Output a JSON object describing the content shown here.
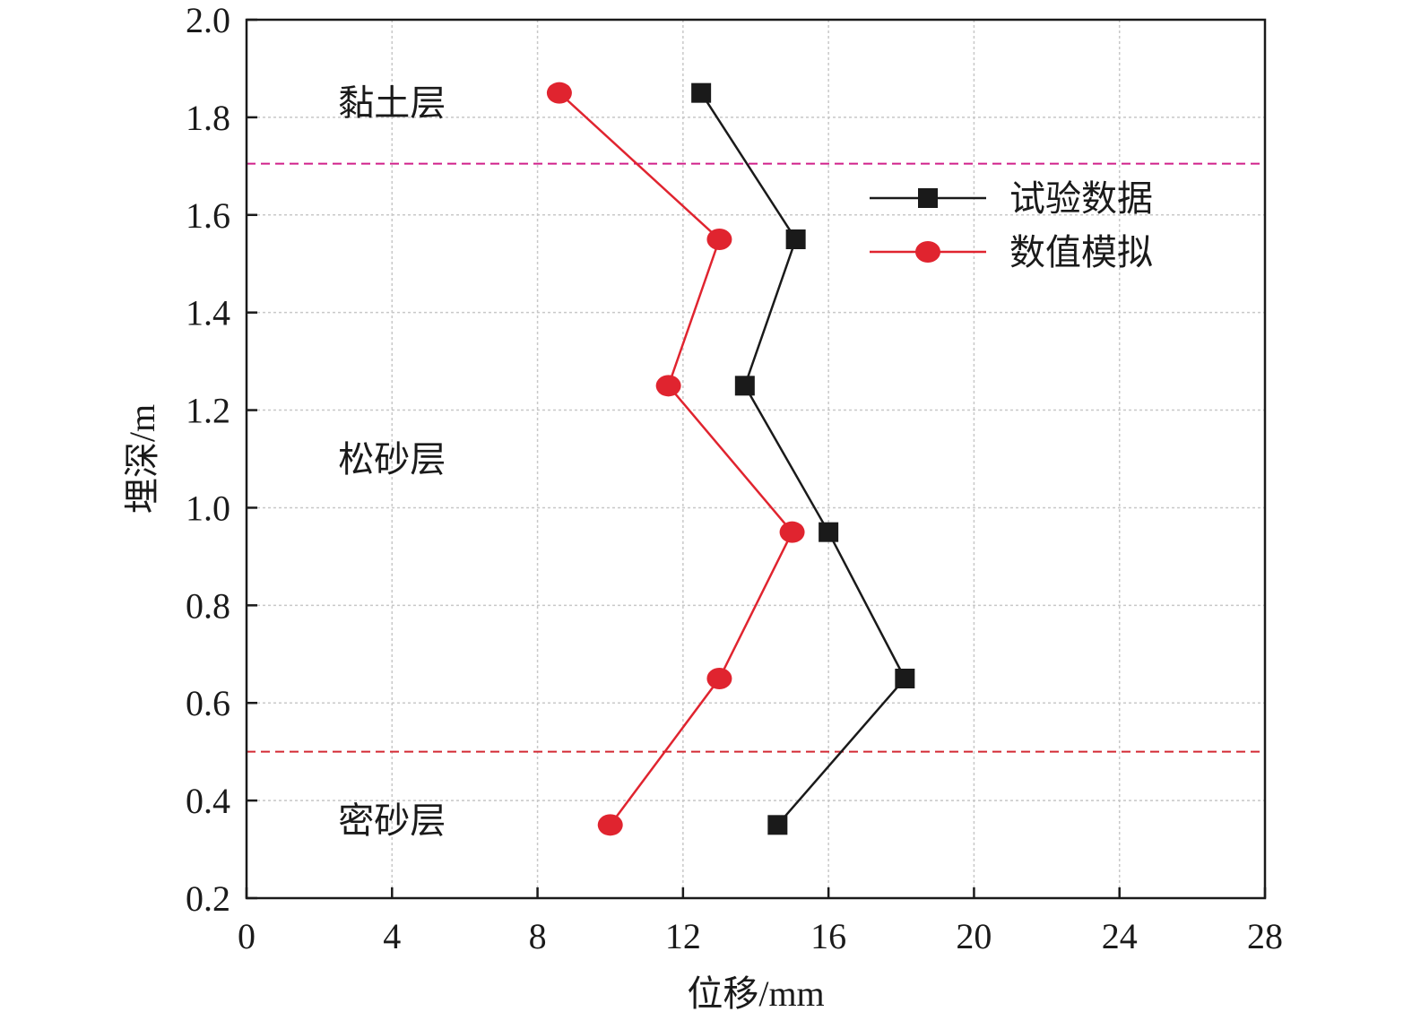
{
  "chart_data": {
    "type": "line",
    "xlabel": "位移/mm",
    "ylabel": "埋深/m",
    "xlim": [
      0,
      28
    ],
    "ylim": [
      0.2,
      2.0
    ],
    "x_ticks": [
      "0",
      "4",
      "8",
      "12",
      "16",
      "20",
      "24",
      "28"
    ],
    "y_ticks": [
      "0.2",
      "0.4",
      "0.6",
      "0.8",
      "1.0",
      "1.2",
      "1.4",
      "1.6",
      "1.8",
      "2.0"
    ],
    "grid": true,
    "legend_position": "top-right",
    "series": [
      {
        "name": "试验数据",
        "color": "#1a1a1a",
        "marker": "square",
        "points": [
          {
            "x": 12.5,
            "y": 1.85
          },
          {
            "x": 15.1,
            "y": 1.55
          },
          {
            "x": 13.7,
            "y": 1.25
          },
          {
            "x": 16.0,
            "y": 0.95
          },
          {
            "x": 18.1,
            "y": 0.65
          },
          {
            "x": 14.6,
            "y": 0.35
          }
        ]
      },
      {
        "name": "数值模拟",
        "color": "#e0242f",
        "marker": "circle",
        "points": [
          {
            "x": 8.6,
            "y": 1.85
          },
          {
            "x": 13.0,
            "y": 1.55
          },
          {
            "x": 11.6,
            "y": 1.25
          },
          {
            "x": 15.0,
            "y": 0.95
          },
          {
            "x": 13.0,
            "y": 0.65
          },
          {
            "x": 10.0,
            "y": 0.35
          }
        ]
      }
    ],
    "reference_lines": [
      {
        "y": 1.705,
        "color": "#d0208a",
        "style": "dashed"
      },
      {
        "y": 0.5,
        "color": "#d42a34",
        "style": "dashed"
      }
    ],
    "annotations": [
      {
        "text": "黏土层",
        "x": 4.0,
        "y": 1.83
      },
      {
        "text": "松砂层",
        "x": 4.0,
        "y": 1.1
      },
      {
        "text": "密砂层",
        "x": 4.0,
        "y": 0.36
      }
    ]
  }
}
